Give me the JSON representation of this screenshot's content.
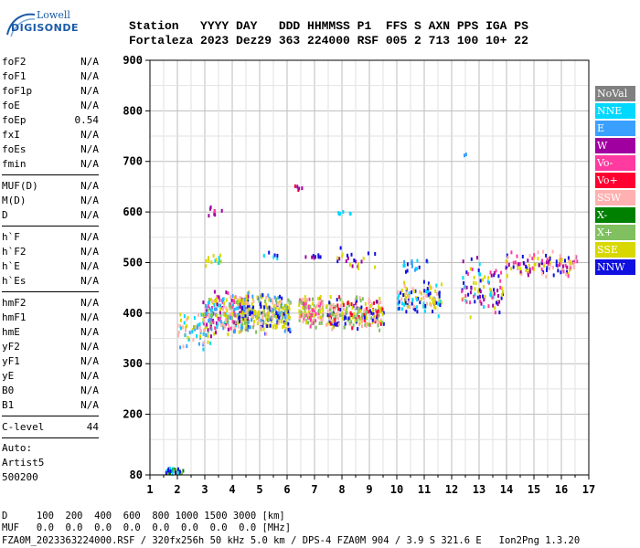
{
  "logo": {
    "line1": "Lowell",
    "line2": "DIGISONDE"
  },
  "header": {
    "labels": "Station   YYYY DAY   DDD HHMMSS P1  FFS S AXN PPS IGA PS",
    "values": "Fortaleza 2023 Dez29 363 224000 RSF 005 2 713 100 10+ 22"
  },
  "params": {
    "group1": [
      {
        "name": "foF2",
        "value": "N/A"
      },
      {
        "name": "foF1",
        "value": "N/A"
      },
      {
        "name": "foF1p",
        "value": "N/A"
      },
      {
        "name": "foE",
        "value": "N/A"
      },
      {
        "name": "foEp",
        "value": "0.54"
      },
      {
        "name": "fxI",
        "value": "N/A"
      },
      {
        "name": "foEs",
        "value": "N/A"
      },
      {
        "name": "fmin",
        "value": "N/A"
      }
    ],
    "group2": [
      {
        "name": "MUF(D)",
        "value": "N/A"
      },
      {
        "name": "M(D)",
        "value": "N/A"
      },
      {
        "name": "D",
        "value": "N/A"
      }
    ],
    "group3": [
      {
        "name": "h`F",
        "value": "N/A"
      },
      {
        "name": "h`F2",
        "value": "N/A"
      },
      {
        "name": "h`E",
        "value": "N/A"
      },
      {
        "name": "h`Es",
        "value": "N/A"
      }
    ],
    "group4": [
      {
        "name": "hmF2",
        "value": "N/A"
      },
      {
        "name": "hmF1",
        "value": "N/A"
      },
      {
        "name": "hmE",
        "value": "N/A"
      },
      {
        "name": "yF2",
        "value": "N/A"
      },
      {
        "name": "yF1",
        "value": "N/A"
      },
      {
        "name": "yE",
        "value": "N/A"
      },
      {
        "name": "B0",
        "value": "N/A"
      },
      {
        "name": "B1",
        "value": "N/A"
      }
    ],
    "group5": [
      {
        "name": "C-level",
        "value": "44"
      }
    ]
  },
  "auto": {
    "line1": "Auto:",
    "line2": "Artist5",
    "line3": "500200"
  },
  "legend": [
    {
      "label": "NoVal",
      "color": "#808080"
    },
    {
      "label": "NNE",
      "color": "#00d8ff"
    },
    {
      "label": "E",
      "color": "#3aa0ff"
    },
    {
      "label": "W",
      "color": "#a000a0"
    },
    {
      "label": "Vo-",
      "color": "#ff3aa0"
    },
    {
      "label": "Vo+",
      "color": "#ff0030"
    },
    {
      "label": "SSW",
      "color": "#ffb0b0"
    },
    {
      "label": "X-",
      "color": "#008000"
    },
    {
      "label": "X+",
      "color": "#80c060"
    },
    {
      "label": "SSE",
      "color": "#d8d800"
    },
    {
      "label": "NNW",
      "color": "#1010e0"
    }
  ],
  "footer": {
    "line1": "D     100  200  400  600  800 1000 1500 3000 [km]",
    "line2": "MUF   0.0  0.0  0.0  0.0  0.0  0.0  0.0  0.0 [MHz]",
    "line3": "FZA0M_2023363224000.RSF / 320fx256h 50 kHz 5.0 km / DPS-4 FZA0M 904 / 3.9 S 321.6 E   Ion2Png 1.3.20"
  },
  "chart_data": {
    "type": "scatter",
    "xlim": [
      1,
      17
    ],
    "ylim": [
      80,
      900
    ],
    "x_ticks": [
      "1",
      "2",
      "3",
      "4",
      "5",
      "6",
      "7",
      "8",
      "9",
      "10",
      "11",
      "12",
      "13",
      "14",
      "15",
      "16",
      "17"
    ],
    "y_ticks": [
      "80",
      "200",
      "300",
      "400",
      "500",
      "600",
      "700",
      "800",
      "900"
    ],
    "grid": true,
    "clusters": [
      {
        "x": [
          1.5,
          2.2
        ],
        "y": [
          82,
          98
        ],
        "n": 30,
        "colors": [
          "#008000",
          "#00d8ff",
          "#80c060",
          "#1010e0"
        ]
      },
      {
        "x": [
          1.95,
          3.2
        ],
        "y": [
          325,
          410
        ],
        "n": 60,
        "colors": [
          "#3aa0ff",
          "#00d8ff",
          "#d8d800",
          "#ffb0b0"
        ]
      },
      {
        "x": [
          2.9,
          4.6
        ],
        "y": [
          355,
          450
        ],
        "n": 260,
        "colors": [
          "#d8d800",
          "#ffb0b0",
          "#ff3aa0",
          "#3aa0ff",
          "#00d8ff",
          "#a000a0",
          "#80c060"
        ]
      },
      {
        "x": [
          4.2,
          6.1
        ],
        "y": [
          360,
          445
        ],
        "n": 280,
        "colors": [
          "#d8d800",
          "#d8d800",
          "#ffb0b0",
          "#80c060",
          "#3aa0ff",
          "#1010e0"
        ]
      },
      {
        "x": [
          6.4,
          7.3
        ],
        "y": [
          370,
          440
        ],
        "n": 130,
        "colors": [
          "#d8d800",
          "#ffb0b0",
          "#ff3aa0",
          "#80c060"
        ]
      },
      {
        "x": [
          7.4,
          9.5
        ],
        "y": [
          365,
          440
        ],
        "n": 230,
        "colors": [
          "#d8d800",
          "#ffb0b0",
          "#1010e0",
          "#ff0030",
          "#80c060"
        ]
      },
      {
        "x": [
          10.0,
          11.6
        ],
        "y": [
          395,
          470
        ],
        "n": 110,
        "colors": [
          "#d8d800",
          "#1010e0",
          "#00d8ff",
          "#ffb0b0"
        ]
      },
      {
        "x": [
          12.3,
          13.9
        ],
        "y": [
          380,
          520
        ],
        "n": 90,
        "colors": [
          "#1010e0",
          "#a000a0",
          "#ff3aa0",
          "#00d8ff",
          "#d8d800"
        ]
      },
      {
        "x": [
          13.9,
          16.6
        ],
        "y": [
          470,
          530
        ],
        "n": 120,
        "colors": [
          "#ff3aa0",
          "#1010e0",
          "#a000a0",
          "#ffb0b0",
          "#d8d800"
        ]
      },
      {
        "x": [
          3.0,
          3.6
        ],
        "y": [
          495,
          520
        ],
        "n": 14,
        "colors": [
          "#00d8ff",
          "#d8d800"
        ]
      },
      {
        "x": [
          3.0,
          3.6
        ],
        "y": [
          590,
          620
        ],
        "n": 8,
        "colors": [
          "#a000a0",
          "#ff3aa0"
        ]
      },
      {
        "x": [
          5.1,
          5.7
        ],
        "y": [
          510,
          525
        ],
        "n": 6,
        "colors": [
          "#00d8ff",
          "#1010e0"
        ]
      },
      {
        "x": [
          6.2,
          6.6
        ],
        "y": [
          640,
          660
        ],
        "n": 5,
        "colors": [
          "#a000a0",
          "#ff0030"
        ]
      },
      {
        "x": [
          6.6,
          7.2
        ],
        "y": [
          510,
          520
        ],
        "n": 8,
        "colors": [
          "#1010e0",
          "#a000a0"
        ]
      },
      {
        "x": [
          7.8,
          8.4
        ],
        "y": [
          595,
          605
        ],
        "n": 6,
        "colors": [
          "#00d8ff"
        ]
      },
      {
        "x": [
          7.8,
          9.2
        ],
        "y": [
          485,
          535
        ],
        "n": 22,
        "colors": [
          "#1010e0",
          "#a000a0",
          "#d8d800"
        ]
      },
      {
        "x": [
          10.2,
          11.1
        ],
        "y": [
          480,
          525
        ],
        "n": 18,
        "colors": [
          "#00d8ff",
          "#1010e0",
          "#3aa0ff"
        ]
      },
      {
        "x": [
          12.4,
          12.6
        ],
        "y": [
          712,
          718
        ],
        "n": 2,
        "colors": [
          "#3aa0ff"
        ]
      }
    ]
  }
}
